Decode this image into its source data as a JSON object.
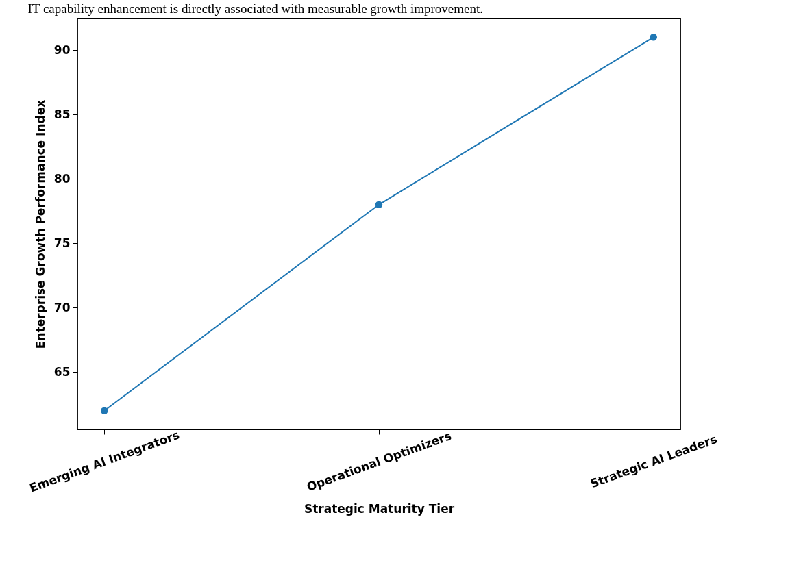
{
  "chart_data": {
    "type": "line",
    "title": "IT capability enhancement is directly associated with measurable growth improvement.",
    "xlabel": "Strategic Maturity Tier",
    "ylabel": "Enterprise Growth Performance Index",
    "categories": [
      "Emerging AI Integrators",
      "Operational Optimizers",
      "Strategic AI Leaders"
    ],
    "series": [
      {
        "color": "#1f77b4",
        "values": [
          62,
          78,
          91
        ]
      }
    ],
    "ylim": [
      60.55,
      92.45
    ],
    "yticks": [
      65,
      70,
      75,
      80,
      85,
      90
    ],
    "grid": false,
    "marker": "circle",
    "line_style": "solid"
  }
}
